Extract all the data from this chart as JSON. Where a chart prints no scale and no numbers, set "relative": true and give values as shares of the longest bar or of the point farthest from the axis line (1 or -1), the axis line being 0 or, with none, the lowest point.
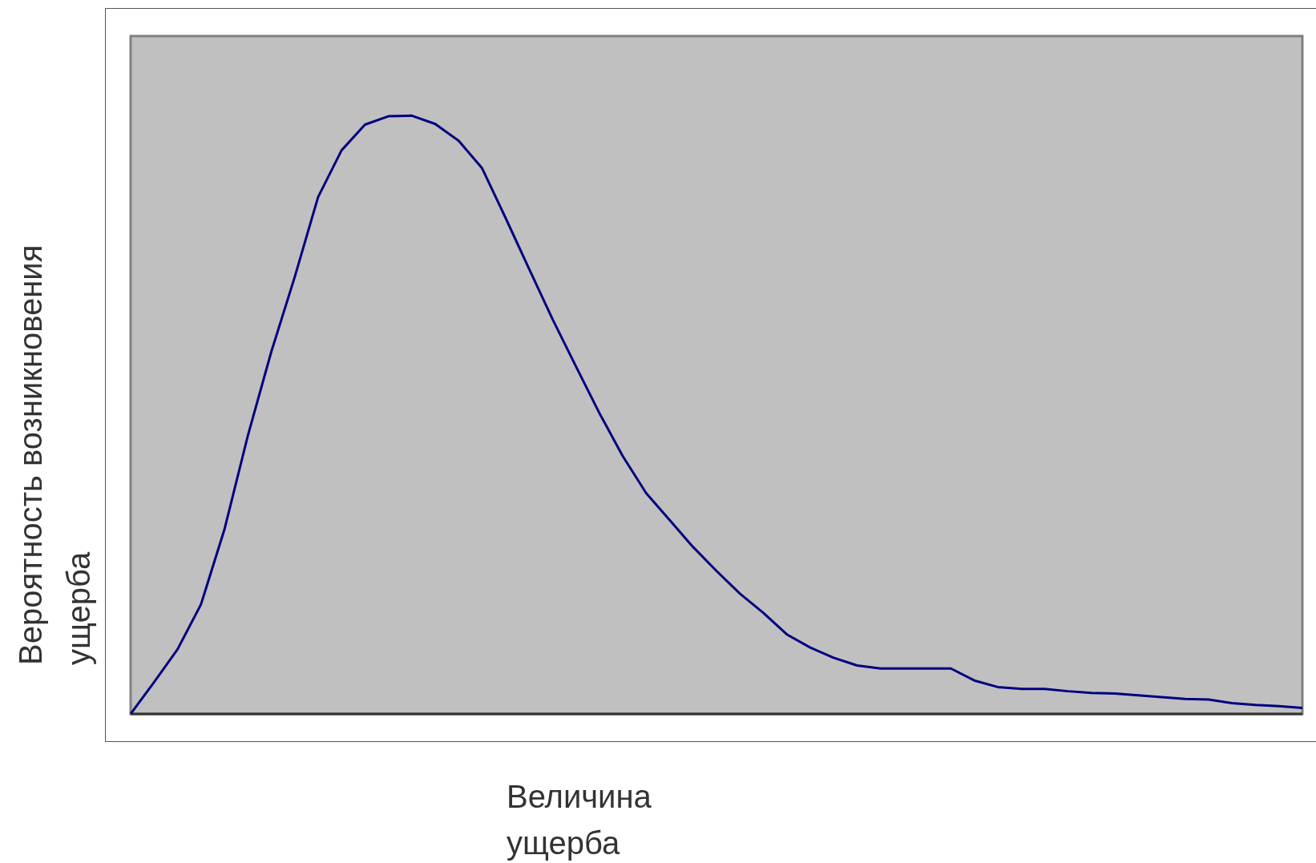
{
  "chart_data": {
    "type": "line",
    "relative": true,
    "xlabel": "Величина ущерба",
    "ylabel": "Вероятность возникновения ущерба",
    "marker": "none",
    "legend": false,
    "categories": [
      null,
      null,
      null,
      null,
      null,
      null,
      null,
      null,
      null,
      null,
      null,
      null,
      null,
      null,
      null,
      null,
      null,
      null,
      null,
      null,
      null,
      null,
      null,
      null,
      null,
      null,
      null,
      null,
      null,
      null,
      null,
      null,
      null,
      null,
      null,
      null,
      null,
      null,
      null,
      null,
      null,
      null,
      null,
      null,
      null,
      null,
      null,
      null,
      null,
      null,
      null
    ],
    "series": [
      {
        "color": "#000080",
        "values": [
          0,
          0.053,
          0.108,
          0.183,
          0.308,
          0.465,
          0.605,
          0.73,
          0.864,
          0.942,
          0.985,
          0.999,
          1,
          0.986,
          0.958,
          0.912,
          0.829,
          0.744,
          0.66,
          0.581,
          0.503,
          0.431,
          0.369,
          0.324,
          0.279,
          0.239,
          0.201,
          0.169,
          0.133,
          0.111,
          0.094,
          0.081,
          0.076,
          0.076,
          0.076,
          0.076,
          0.056,
          0.045,
          0.042,
          0.042,
          0.038,
          0.035,
          0.034,
          0.031,
          0.028,
          0.025,
          0.024,
          0.018,
          0.015,
          0.013,
          0.01
        ]
      }
    ]
  }
}
